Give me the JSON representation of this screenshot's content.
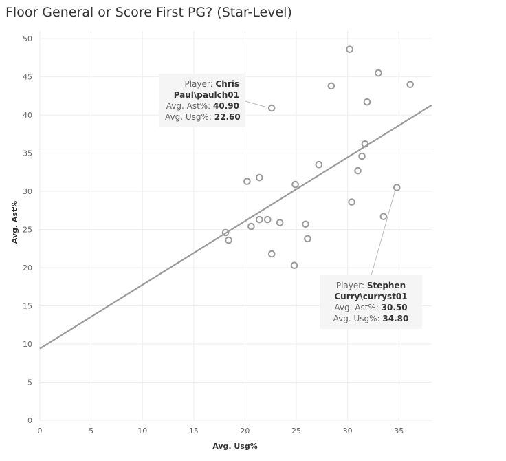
{
  "chart_data": {
    "type": "scatter",
    "title": "Floor General or Score First PG? (Star-Level)",
    "xlabel": "Avg. Usg%",
    "ylabel": "Avg. Ast%",
    "xlim": [
      0,
      38.2
    ],
    "ylim": [
      0,
      51
    ],
    "xticks": [
      "0",
      "5",
      "10",
      "15",
      "20",
      "25",
      "30",
      "35"
    ],
    "yticks": [
      "0",
      "5",
      "10",
      "15",
      "20",
      "25",
      "30",
      "35",
      "40",
      "45",
      "50"
    ],
    "points": [
      {
        "x": 18.1,
        "y": 24.6
      },
      {
        "x": 18.4,
        "y": 23.6
      },
      {
        "x": 20.2,
        "y": 31.3
      },
      {
        "x": 20.6,
        "y": 25.4
      },
      {
        "x": 21.4,
        "y": 31.8
      },
      {
        "x": 21.4,
        "y": 26.3
      },
      {
        "x": 22.2,
        "y": 26.3
      },
      {
        "x": 22.6,
        "y": 21.8
      },
      {
        "x": 23.4,
        "y": 25.9
      },
      {
        "x": 24.8,
        "y": 20.3
      },
      {
        "x": 24.9,
        "y": 30.9
      },
      {
        "x": 25.9,
        "y": 25.7
      },
      {
        "x": 26.1,
        "y": 23.8
      },
      {
        "x": 27.2,
        "y": 33.5
      },
      {
        "x": 28.4,
        "y": 43.8
      },
      {
        "x": 30.2,
        "y": 48.6
      },
      {
        "x": 30.4,
        "y": 28.6
      },
      {
        "x": 31.0,
        "y": 32.7
      },
      {
        "x": 31.4,
        "y": 34.6
      },
      {
        "x": 31.7,
        "y": 36.2
      },
      {
        "x": 31.9,
        "y": 41.7
      },
      {
        "x": 33.0,
        "y": 45.5
      },
      {
        "x": 33.5,
        "y": 26.7
      },
      {
        "x": 36.1,
        "y": 44.0
      },
      {
        "x": 22.6,
        "y": 40.9,
        "highlight": "orange"
      },
      {
        "x": 34.8,
        "y": 30.5,
        "highlight": "dark"
      }
    ],
    "trend_line": {
      "x0": 0,
      "y0": 9.4,
      "x1": 38.2,
      "y1": 41.3
    },
    "colors": {
      "point": "#9a9a9a",
      "highlight": "#f28e2b",
      "selected": "#555555",
      "trend": "#9a9a9a"
    }
  },
  "tooltips": [
    {
      "player_label": "Player: ",
      "player_line1": "Chris",
      "player_line2": "Paul\\paulch01",
      "ast_label": "Avg. Ast%: ",
      "ast_value": "40.90",
      "usg_label": "Avg. Usg%: ",
      "usg_value": "22.60"
    },
    {
      "player_label": "Player: ",
      "player_line1": "Stephen",
      "player_line2": "Curry\\curryst01",
      "ast_label": "Avg. Ast%: ",
      "ast_value": "30.50",
      "usg_label": "Avg. Usg%: ",
      "usg_value": "34.80"
    }
  ]
}
